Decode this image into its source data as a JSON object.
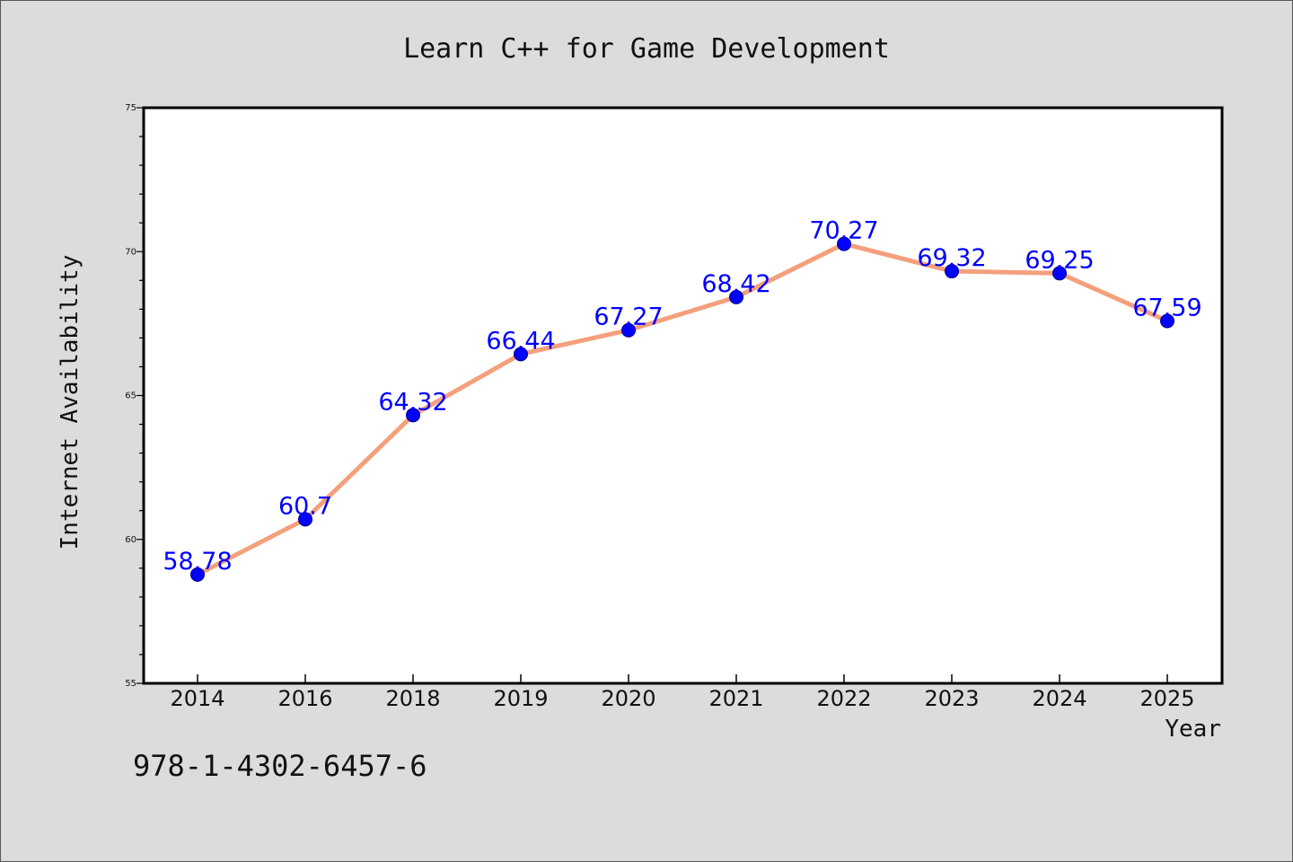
{
  "chart_data": {
    "type": "line",
    "title": "Learn C++ for Game Development",
    "xlabel": "Year",
    "ylabel": "Internet Availability",
    "categories": [
      "2014",
      "2016",
      "2018",
      "2019",
      "2020",
      "2021",
      "2022",
      "2023",
      "2024",
      "2025"
    ],
    "series": [
      {
        "values": [
          58.78,
          60.7,
          64.32,
          66.44,
          67.27,
          68.42,
          70.27,
          69.32,
          69.25,
          67.59
        ],
        "data_labels": [
          "58.78",
          "60.7",
          "64.32",
          "66.44",
          "67.27",
          "68.42",
          "70.27",
          "69.32",
          "69.25",
          "67.59"
        ]
      }
    ],
    "ylim": [
      55,
      75
    ],
    "yticks": [
      "55",
      "60",
      "65",
      "70",
      "75"
    ],
    "grid": false,
    "legend": "none",
    "colors": {
      "line": "#f4a07c",
      "marker": "#0000ff",
      "label": "#0000ff",
      "background": "#dcdcdc",
      "plot_background": "#ffffff"
    }
  },
  "footer_text": "978-1-4302-6457-6"
}
